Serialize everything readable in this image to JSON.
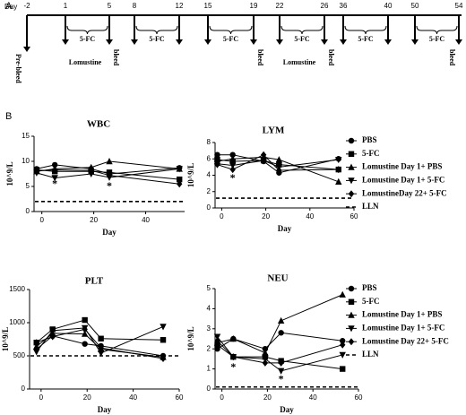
{
  "panel_labels": [
    "A",
    "B"
  ],
  "timeline": {
    "axis_label": "Day",
    "days": [
      -2,
      1,
      5,
      8,
      12,
      15,
      19,
      22,
      26,
      36,
      40,
      50,
      54
    ],
    "treatments": [
      "5-FC",
      "5-FC",
      "5-FC",
      "5-FC",
      "5-FC",
      "5-FC"
    ],
    "drugs": [
      "Lomustine",
      "Lomustine"
    ],
    "bleeds": [
      "Pre-bleed",
      "bleed",
      "bleed",
      "bleed",
      "bleed"
    ]
  },
  "legends": [
    {
      "entries": [
        "PBS",
        "5-FC",
        "Lomustine Day 1+ PBS",
        "Lomustine Day 1+ 5-FC",
        "LomustineDay 22+ 5-FC",
        "LLN"
      ]
    },
    {
      "entries": [
        "PBS",
        "5-FC",
        "Lomustine Day 1+ PBS",
        "Lomustine Day 1+ 5-FC",
        "Lomustine Day 22+ 5-FC",
        "LLN"
      ]
    }
  ],
  "chart_data": [
    {
      "type": "line",
      "title": "WBC",
      "x_label": "Day",
      "y_label": "10^9/L",
      "x": [
        -2,
        5,
        19,
        26,
        53
      ],
      "xlim": [
        -3,
        55
      ],
      "xticks": [
        0,
        20,
        40
      ],
      "ylim": [
        0,
        15
      ],
      "yticks": [
        0,
        5,
        10,
        15
      ],
      "reference_line": {
        "value": 2,
        "style": "dashed"
      },
      "series": [
        {
          "marker": "circle",
          "color": "#000",
          "values": [
            8.5,
            9.3,
            8.5,
            7.5,
            8.7
          ]
        },
        {
          "marker": "square",
          "color": "#000",
          "values": [
            8.3,
            8.0,
            8.0,
            7.8,
            6.4
          ]
        },
        {
          "marker": "triangle-up",
          "color": "#000",
          "values": [
            8.0,
            8.5,
            8.8,
            10.0,
            8.5
          ]
        },
        {
          "marker": "triangle-down",
          "color": "#000",
          "values": [
            7.7,
            6.7,
            7.5,
            6.8,
            8.5
          ]
        },
        {
          "marker": "diamond",
          "color": "#000",
          "values": [
            8.1,
            8.3,
            8.2,
            7.2,
            5.5
          ]
        }
      ],
      "annotations": [
        {
          "text": "*",
          "x": 5,
          "y": 5.4
        },
        {
          "text": "*",
          "x": 26,
          "y": 5.0
        }
      ]
    },
    {
      "type": "line",
      "title": "LYM",
      "x_label": "Day",
      "y_label": "10^9/L",
      "x": [
        -2,
        5,
        19,
        26,
        53
      ],
      "xlim": [
        -3,
        60
      ],
      "xticks": [
        0,
        20,
        40,
        60
      ],
      "ylim": [
        0,
        8
      ],
      "yticks": [
        0,
        2,
        4,
        6,
        8
      ],
      "reference_line": {
        "value": 1.2,
        "style": "dashed"
      },
      "series": [
        {
          "marker": "circle",
          "color": "#000",
          "values": [
            6.5,
            6.5,
            5.7,
            4.3,
            6.0
          ]
        },
        {
          "marker": "square",
          "color": "#000",
          "values": [
            5.9,
            5.7,
            5.8,
            5.3,
            4.7
          ]
        },
        {
          "marker": "triangle-up",
          "color": "#000",
          "values": [
            5.7,
            6.0,
            6.2,
            5.9,
            3.2
          ]
        },
        {
          "marker": "triangle-down",
          "color": "#000",
          "values": [
            5.4,
            5.2,
            5.8,
            5.0,
            5.9
          ]
        },
        {
          "marker": "diamond",
          "color": "#000",
          "values": [
            5.3,
            4.7,
            6.5,
            4.6,
            4.7
          ]
        }
      ],
      "annotations": [
        {
          "text": "*",
          "x": 5,
          "y": 3.6
        }
      ]
    },
    {
      "type": "line",
      "title": "PLT",
      "x_label": "Day",
      "y_label": "10^9/L",
      "x": [
        -2,
        5,
        19,
        26,
        53
      ],
      "xlim": [
        -5,
        60
      ],
      "xticks": [
        0,
        20,
        40,
        60
      ],
      "ylim": [
        0,
        1500
      ],
      "yticks": [
        0,
        500,
        1000,
        1500
      ],
      "reference_line": {
        "value": 500,
        "style": "dashed"
      },
      "series": [
        {
          "marker": "circle",
          "color": "#000",
          "values": [
            600,
            800,
            680,
            650,
            500
          ]
        },
        {
          "marker": "square",
          "color": "#000",
          "values": [
            700,
            900,
            1040,
            760,
            740
          ]
        },
        {
          "marker": "triangle-up",
          "color": "#000",
          "values": [
            640,
            840,
            830,
            600,
            480
          ]
        },
        {
          "marker": "triangle-down",
          "color": "#000",
          "values": [
            560,
            880,
            920,
            540,
            940
          ]
        },
        {
          "marker": "diamond",
          "color": "#000",
          "values": [
            700,
            790,
            900,
            620,
            460
          ]
        }
      ],
      "annotations": []
    },
    {
      "type": "line",
      "title": "NEU",
      "x_label": "Day",
      "y_label": "10^9/L",
      "x": [
        -2,
        5,
        19,
        26,
        53
      ],
      "xlim": [
        -3,
        60
      ],
      "xticks": [
        0,
        20,
        40,
        60
      ],
      "ylim": [
        0,
        5
      ],
      "yticks": [
        0,
        1,
        2,
        3,
        4,
        5
      ],
      "reference_line": {
        "value": 0.1,
        "style": "dashed"
      },
      "series": [
        {
          "marker": "circle",
          "color": "#000",
          "values": [
            2.0,
            2.5,
            2.0,
            2.8,
            2.4
          ]
        },
        {
          "marker": "square",
          "color": "#000",
          "values": [
            2.2,
            1.6,
            1.6,
            1.4,
            1.0
          ]
        },
        {
          "marker": "triangle-up",
          "color": "#000",
          "values": [
            2.3,
            2.5,
            1.8,
            3.4,
            4.7
          ]
        },
        {
          "marker": "triangle-down",
          "color": "#000",
          "values": [
            2.6,
            1.6,
            1.5,
            0.9,
            1.7
          ]
        },
        {
          "marker": "diamond",
          "color": "#000",
          "values": [
            2.4,
            1.6,
            1.3,
            1.3,
            2.2
          ]
        }
      ],
      "annotations": [
        {
          "text": "*",
          "x": 5,
          "y": 1.05
        },
        {
          "text": "*",
          "x": 26,
          "y": 0.45
        }
      ]
    }
  ]
}
